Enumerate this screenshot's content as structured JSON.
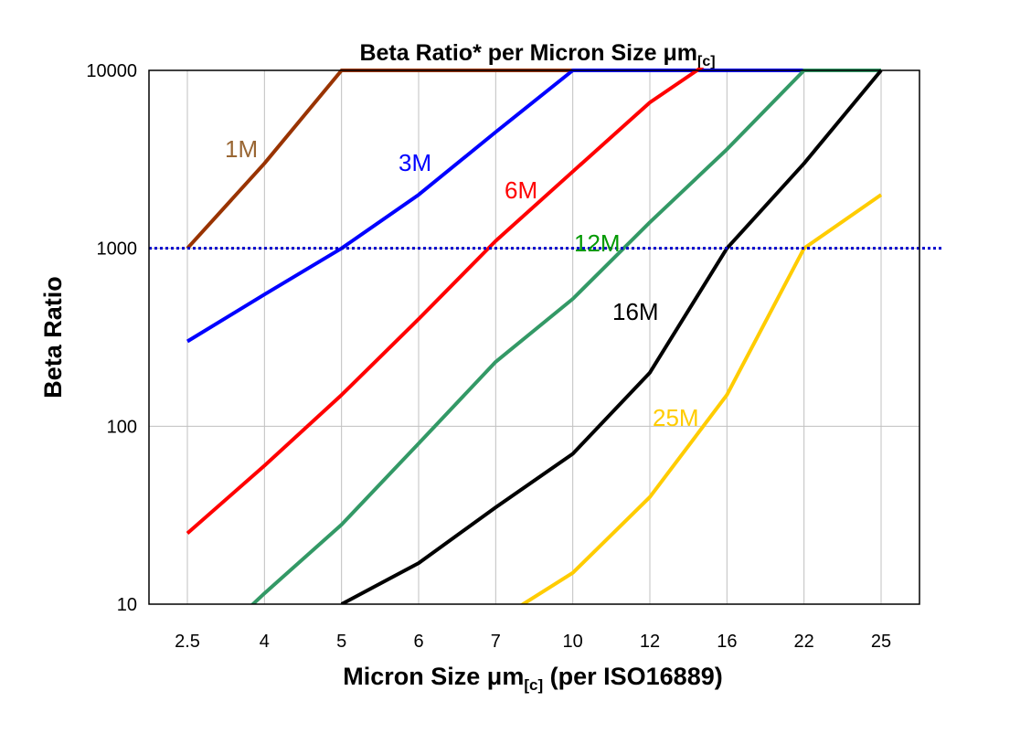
{
  "chart_data": {
    "type": "line",
    "title": "Beta Ratio* per Micron Size μm",
    "title_subscript": "[c]",
    "xlabel": "Micron Size μm",
    "xlabel_subscript": "[c]",
    "xlabel_suffix": " (per ISO16889)",
    "ylabel": "Beta Ratio",
    "y_scale": "log",
    "ylim": [
      10,
      10000
    ],
    "y_ticks": [
      "10",
      "100",
      "1000",
      "10000"
    ],
    "y_tick_values": [
      10,
      100,
      1000,
      10000
    ],
    "categories": [
      "2.5",
      "4",
      "5",
      "6",
      "7",
      "10",
      "12",
      "16",
      "22",
      "25"
    ],
    "grid": true,
    "reference_line": {
      "value": 1000,
      "color": "#0000CC",
      "style": "dotted"
    },
    "series": [
      {
        "name": "1M",
        "color": "#993300",
        "label_color": "#996633",
        "values": [
          1000,
          3000,
          10000,
          10000,
          10000,
          10000,
          10000,
          10000,
          10000,
          10000
        ]
      },
      {
        "name": "3M",
        "color": "#0000FF",
        "label_color": "#0000FF",
        "values": [
          300,
          550,
          1000,
          2000,
          4500,
          10000,
          10000,
          10000,
          10000,
          10000
        ]
      },
      {
        "name": "6M",
        "color": "#FF0000",
        "label_color": "#FF0000",
        "values": [
          25,
          60,
          150,
          400,
          1100,
          2700,
          6600,
          13000,
          13000,
          13000
        ]
      },
      {
        "name": "12M",
        "color": "#339966",
        "label_color": "#009900",
        "values": [
          4.5,
          11.5,
          28,
          80,
          230,
          520,
          1400,
          3600,
          10000,
          10000
        ]
      },
      {
        "name": "16M",
        "color": "#000000",
        "label_color": "#000000",
        "values": [
          null,
          null,
          10,
          17,
          35,
          70,
          200,
          1000,
          3000,
          10000
        ]
      },
      {
        "name": "25M",
        "color": "#FFCC00",
        "label_color": "#FFCC00",
        "values": [
          null,
          null,
          null,
          null,
          8,
          15,
          40,
          150,
          1000,
          2000
        ]
      }
    ]
  }
}
